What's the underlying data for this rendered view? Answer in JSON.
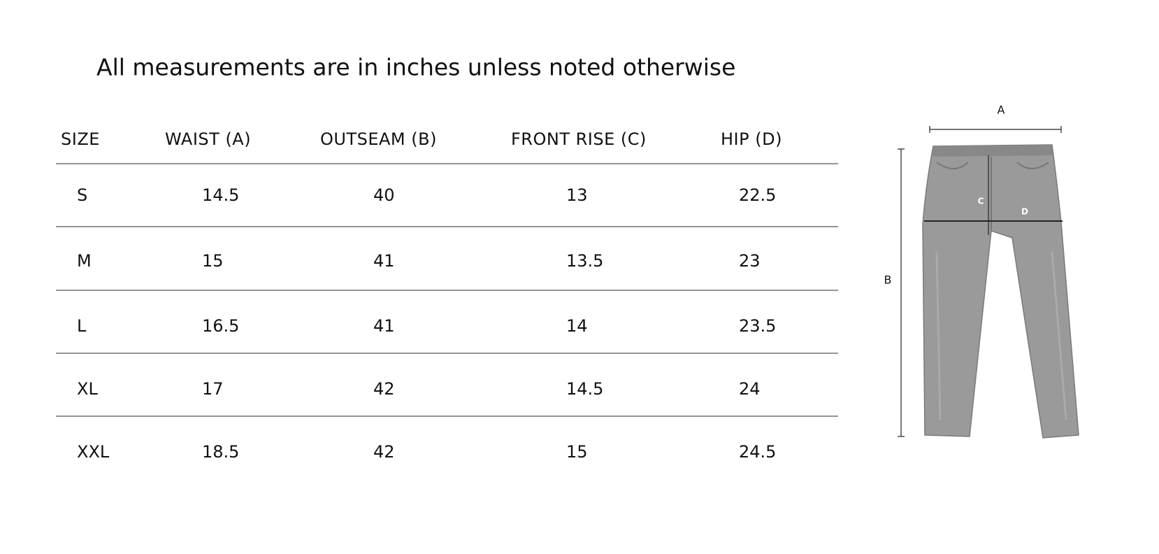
{
  "header": {
    "title": "All measurements are in inches unless noted otherwise"
  },
  "table": {
    "columns": [
      "SIZE",
      "WAIST (A)",
      "OUTSEAM (B)",
      "FRONT RISE (C)",
      "HIP (D)"
    ],
    "rows": [
      [
        "S",
        "14.5",
        "40",
        "13",
        "22.5"
      ],
      [
        "M",
        "15",
        "41",
        "13.5",
        "23"
      ],
      [
        "L",
        "16.5",
        "41",
        "14",
        "23.5"
      ],
      [
        "XL",
        "17",
        "42",
        "14.5",
        "24"
      ],
      [
        "XXL",
        "18.5",
        "42",
        "15",
        "24.5"
      ]
    ]
  },
  "diagram": {
    "labels": [
      "A",
      "B",
      "C",
      "D"
    ]
  }
}
